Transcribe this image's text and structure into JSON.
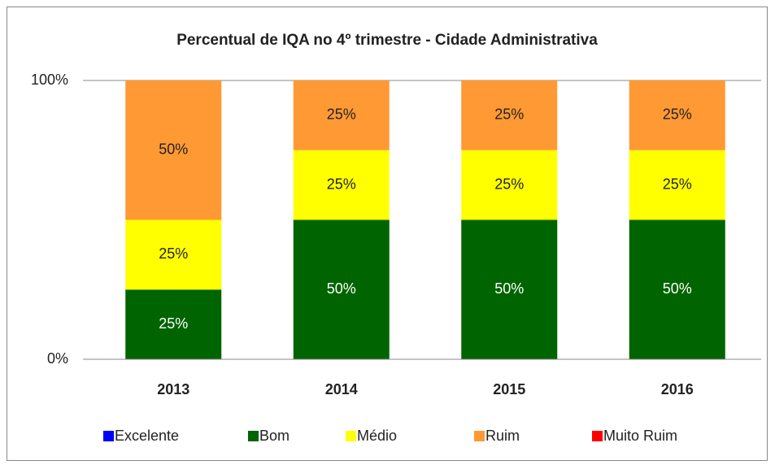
{
  "chart_data": {
    "type": "stacked_bar",
    "title": "Percentual de  IQA no 4º trimestre  - Cidade Administrativa",
    "categories": [
      "2013",
      "2014",
      "2015",
      "2016"
    ],
    "series": [
      {
        "name": "Excelente",
        "color": "#0000ff",
        "values": [
          0,
          0,
          0,
          0
        ]
      },
      {
        "name": "Bom",
        "color": "#006400",
        "values": [
          25,
          50,
          50,
          50
        ],
        "value_labels": [
          "25%",
          "50%",
          "50%",
          "50%"
        ]
      },
      {
        "name": "Médio",
        "color": "#ffff00",
        "values": [
          25,
          25,
          25,
          25
        ],
        "value_labels": [
          "25%",
          "25%",
          "25%",
          "25%"
        ]
      },
      {
        "name": "Ruim",
        "color": "#ff9933",
        "values": [
          50,
          25,
          25,
          25
        ],
        "value_labels": [
          "50%",
          "25%",
          "25%",
          "25%"
        ]
      },
      {
        "name": "Muito Ruim",
        "color": "#ff0000",
        "values": [
          0,
          0,
          0,
          0
        ]
      }
    ],
    "ylim": [
      0,
      100
    ],
    "yticks": [
      {
        "value": 0,
        "label": "0%"
      },
      {
        "value": 100,
        "label": "100%"
      }
    ],
    "grid": true,
    "legend": "bottom"
  }
}
